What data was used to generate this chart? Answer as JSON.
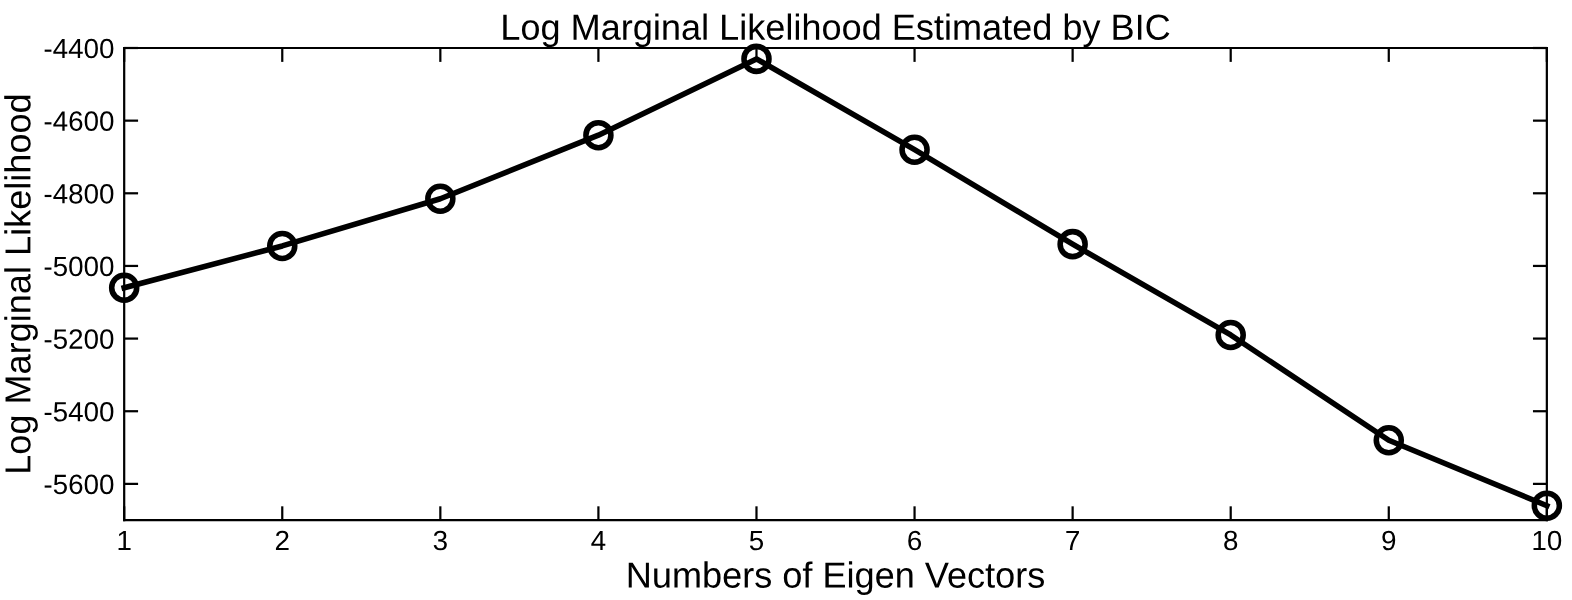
{
  "chart_data": {
    "type": "line",
    "title": "Log Marginal Likelihood Estimated by BIC",
    "xlabel": "Numbers of Eigen Vectors",
    "ylabel": "Log Marginal Likelihood",
    "x": [
      1,
      2,
      3,
      4,
      5,
      6,
      7,
      8,
      9,
      10
    ],
    "series": [
      {
        "color": "#000000",
        "values": [
          -5060,
          -4945,
          -4815,
          -4640,
          -4430,
          -4680,
          -4940,
          -5190,
          -5480,
          -5660
        ]
      }
    ],
    "xlim": [
      1,
      10
    ],
    "xticks": [
      1,
      2,
      3,
      4,
      5,
      6,
      7,
      8,
      9,
      10
    ],
    "ylim": [
      -5700,
      -4400
    ],
    "yticks": [
      -5600,
      -5400,
      -5200,
      -5000,
      -4800,
      -4600,
      -4400
    ],
    "marker": "circle",
    "line_style": "solid",
    "grid": false,
    "legend": false
  }
}
